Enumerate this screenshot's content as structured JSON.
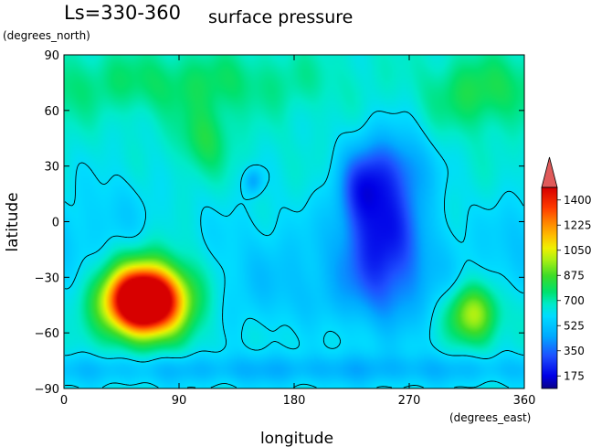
{
  "chart_data": {
    "type": "heatmap",
    "title": "Ls=330-360",
    "subtitle": "surface pressure",
    "xlabel": "longitude",
    "xunit": "(degrees_east)",
    "ylabel": "latitude",
    "yunit": "(degrees_north)",
    "xlim": [
      0,
      360
    ],
    "ylim": [
      -90,
      90
    ],
    "x_ticks": [
      "0",
      "90",
      "180",
      "270",
      "360"
    ],
    "y_ticks": [
      "90",
      "60",
      "30",
      "0",
      "−30",
      "−60",
      "−90"
    ],
    "colorbar": {
      "ticks": [
        "175",
        "350",
        "525",
        "700",
        "875",
        "1050",
        "1225",
        "1400"
      ],
      "range": [
        87.5,
        1487.5
      ],
      "extend": "max",
      "contour_level": 600
    },
    "background_value": 650,
    "features": [
      {
        "lon": 62,
        "lat": -43,
        "value": 1150,
        "sx": 18,
        "sy": 11
      },
      {
        "lon": 68,
        "lat": -40,
        "value": 420,
        "sx": 30,
        "sy": 17
      },
      {
        "lon": 110,
        "lat": 45,
        "value": 160,
        "sx": 14,
        "sy": 13
      },
      {
        "lon": 90,
        "lat": 75,
        "value": 120,
        "sx": 80,
        "sy": 12
      },
      {
        "lon": 322,
        "lat": 68,
        "value": 130,
        "sx": 26,
        "sy": 14
      },
      {
        "lon": 320,
        "lat": -50,
        "value": 400,
        "sx": 14,
        "sy": 11
      },
      {
        "lon": 250,
        "lat": -5,
        "value": -380,
        "sx": 22,
        "sy": 30
      },
      {
        "lon": 232,
        "lat": 18,
        "value": -200,
        "sx": 12,
        "sy": 14
      },
      {
        "lon": 260,
        "lat": 30,
        "value": -150,
        "sx": 20,
        "sy": 13
      },
      {
        "lon": 148,
        "lat": 22,
        "value": -180,
        "sx": 5,
        "sy": 5
      },
      {
        "lon": 180,
        "lat": -35,
        "value": -130,
        "sx": 130,
        "sy": 28
      },
      {
        "lon": 40,
        "lat": 5,
        "value": -70,
        "sx": 20,
        "sy": 20
      },
      {
        "lon": 355,
        "lat": -10,
        "value": -80,
        "sx": 18,
        "sy": 18
      },
      {
        "lon": 180,
        "lat": -80,
        "value": -140,
        "sx": 300,
        "sy": 6
      },
      {
        "lon": 200,
        "lat": -60,
        "value": 40,
        "sx": 60,
        "sy": 10
      }
    ]
  }
}
